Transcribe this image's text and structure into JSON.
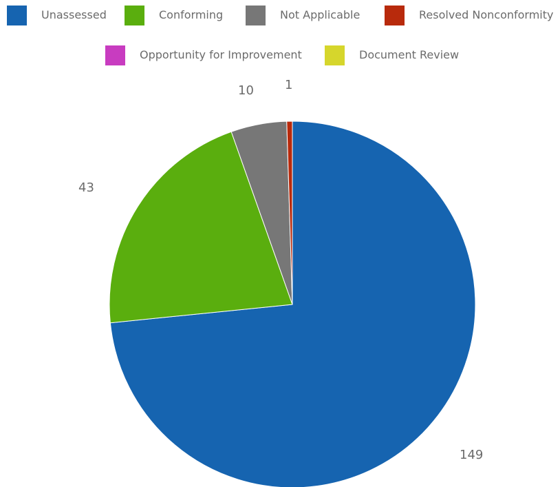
{
  "chart_data": {
    "type": "pie",
    "categories": [
      "Unassessed",
      "Conforming",
      "Not Applicable",
      "Resolved Nonconformity",
      "Opportunity for Improvement",
      "Document Review"
    ],
    "values": [
      149,
      43,
      10,
      1,
      0,
      0
    ],
    "data_labels": [
      "149",
      "43",
      "10",
      "1",
      "",
      ""
    ],
    "colors": [
      "#1664b0",
      "#5aae0e",
      "#777777",
      "#b82a0c",
      "#c83cc0",
      "#d6d62c"
    ],
    "legend_position": "top",
    "start": "12 o'clock",
    "direction": "clockwise"
  }
}
